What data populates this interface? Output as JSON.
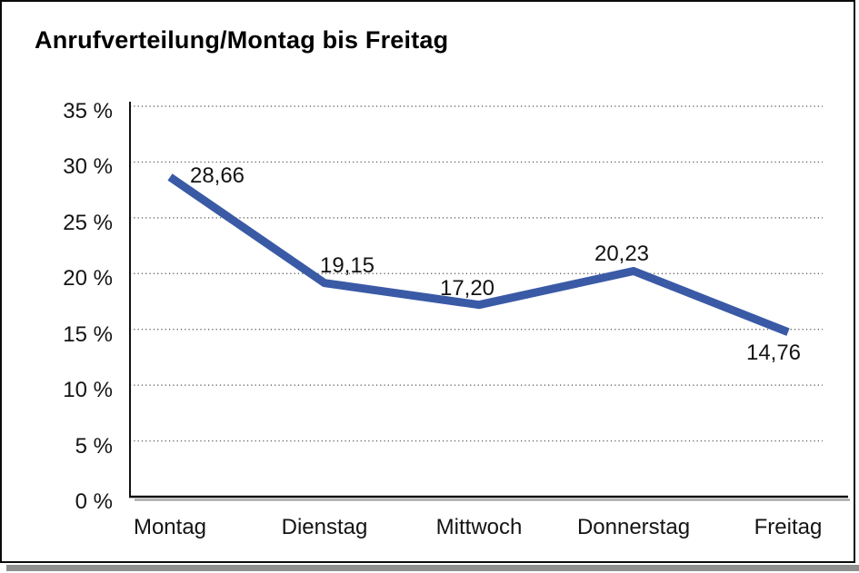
{
  "chart_data": {
    "type": "line",
    "title": "Anrufverteilung/Montag bis Freitag",
    "categories": [
      "Montag",
      "Dienstag",
      "Mittwoch",
      "Donnerstag",
      "Freitag"
    ],
    "values": [
      28.66,
      19.15,
      17.2,
      20.23,
      14.76
    ],
    "value_labels": [
      "28,66",
      "19,15",
      "17,20",
      "20,23",
      "14,76"
    ],
    "y_ticks": [
      {
        "label": "35 %",
        "value": 35
      },
      {
        "label": "30 %",
        "value": 30
      },
      {
        "label": "25 %",
        "value": 25
      },
      {
        "label": "20 %",
        "value": 20
      },
      {
        "label": "15 %",
        "value": 15
      },
      {
        "label": "10 %",
        "value": 10
      },
      {
        "label": "5 %",
        "value": 5
      },
      {
        "label": "0 %",
        "value": 0
      }
    ],
    "ylim": [
      0,
      35
    ],
    "xlabel": "",
    "ylabel": "",
    "grid": "horizontal-dotted",
    "legend": "none",
    "line_color": "#3A5AA6",
    "axis_color": "#111111",
    "grid_color": "#4d4d4d"
  }
}
